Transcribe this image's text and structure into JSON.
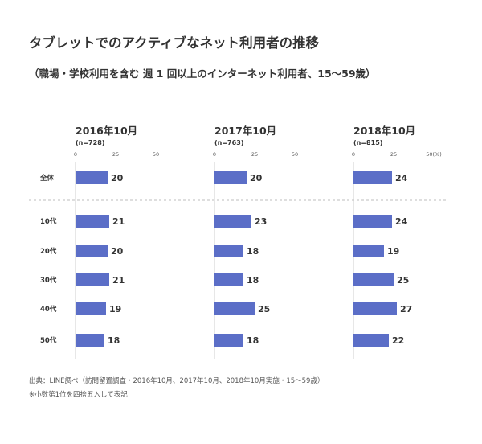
{
  "title": "タブレットでのアクティブなネット利用者の推移",
  "subtitle": "（職場・学校利用を含む 週 1 回以上のインターネット利用者、15～59歳）",
  "notes": [
    "出典：LINE調べ（訪問留置調査・2016年10月、2017年10月、2018年10月実施・15～59歳）",
    "※小数第1位を四捨五入して表記"
  ],
  "colors": {
    "bar": "#5b6ec7",
    "axis": "#cfcfcf",
    "divider": "#bdbdbd",
    "text": "#333333"
  },
  "chart_data": {
    "type": "bar",
    "orientation": "horizontal",
    "categories": [
      "全体",
      "10代",
      "20代",
      "30代",
      "40代",
      "50代"
    ],
    "xlim": [
      0,
      50
    ],
    "xticks": [
      "0",
      "25",
      "50"
    ],
    "last_tick_label": "50(%)",
    "series": [
      {
        "name": "2016年10月",
        "n": "(n=728)",
        "values": [
          20,
          21,
          20,
          21,
          19,
          18
        ]
      },
      {
        "name": "2017年10月",
        "n": "(n=763)",
        "values": [
          20,
          23,
          18,
          18,
          25,
          18
        ]
      },
      {
        "name": "2018年10月",
        "n": "(n=815)",
        "values": [
          24,
          24,
          19,
          25,
          27,
          22
        ]
      }
    ]
  }
}
